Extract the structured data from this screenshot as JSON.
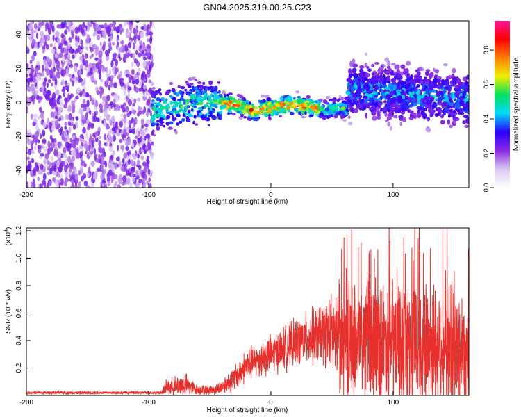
{
  "title": "GN04.2025.319.00.25.C23",
  "chart_data": [
    {
      "type": "heatmap",
      "name": "spectrogram",
      "xlabel": "Height of straight line (km)",
      "ylabel": "Frequency (Hz)",
      "xlim": [
        -200,
        162
      ],
      "ylim": [
        -50,
        48
      ],
      "xticks": [
        -200,
        -100,
        0,
        100
      ],
      "yticks": [
        -40,
        -20,
        0,
        20,
        40
      ],
      "colorbar": {
        "label": "Normalized spectral amplitude",
        "range": [
          0,
          0.97
        ],
        "ticks": [
          "0.0",
          "0.2",
          "0.4",
          "0.6",
          "0.8"
        ],
        "colors": [
          "#ffffff",
          "#d8c8f0",
          "#8a2be2",
          "#2a00ff",
          "#00d8ff",
          "#00e060",
          "#f0f000",
          "#ff8000",
          "#ff0000",
          "#ff1493"
        ]
      },
      "regions": [
        {
          "x": [
            -200,
            -97
          ],
          "description_level": "scattered noise",
          "amplitude": 0.08,
          "freq_range": [
            -50,
            48
          ]
        },
        {
          "x": [
            -97,
            63
          ],
          "amplitude": 0.5,
          "freq_center_track": [
            [
              -97,
              -5
            ],
            [
              -60,
              0
            ],
            [
              -30,
              -1
            ],
            [
              -15,
              -5
            ],
            [
              0,
              -3
            ],
            [
              20,
              -1
            ],
            [
              40,
              -4
            ],
            [
              63,
              -3
            ]
          ],
          "freq_spread": 6
        },
        {
          "x": [
            63,
            162
          ],
          "amplitude": 0.2,
          "freq_center_track": [
            [
              63,
              8
            ],
            [
              90,
              6
            ],
            [
              120,
              4
            ],
            [
              162,
              2
            ]
          ],
          "freq_spread": 14
        }
      ]
    },
    {
      "type": "line",
      "name": "snr",
      "xlabel": "Height of straight line (km)",
      "ylabel": "SNR (10 * v/v)",
      "multiplier_label": "(x10",
      "multiplier_exp": "4",
      "xlim": [
        -200,
        162
      ],
      "ylim": [
        0,
        1.22
      ],
      "xticks": [
        -200,
        -100,
        0,
        100
      ],
      "yticks": [
        0.2,
        0.4,
        0.6,
        0.8,
        1.0,
        1.2
      ],
      "color": "#e8302c",
      "envelope": [
        {
          "x": -200,
          "mean": 0.02,
          "spread": 0.01
        },
        {
          "x": -90,
          "mean": 0.02,
          "spread": 0.01
        },
        {
          "x": -85,
          "mean": 0.06,
          "spread": 0.05
        },
        {
          "x": -70,
          "mean": 0.08,
          "spread": 0.07
        },
        {
          "x": -60,
          "mean": 0.04,
          "spread": 0.03
        },
        {
          "x": -45,
          "mean": 0.04,
          "spread": 0.03
        },
        {
          "x": -30,
          "mean": 0.12,
          "spread": 0.08
        },
        {
          "x": -20,
          "mean": 0.22,
          "spread": 0.1
        },
        {
          "x": 0,
          "mean": 0.3,
          "spread": 0.12
        },
        {
          "x": 25,
          "mean": 0.4,
          "spread": 0.15
        },
        {
          "x": 45,
          "mean": 0.46,
          "spread": 0.2
        },
        {
          "x": 60,
          "mean": 0.4,
          "spread": 0.35
        },
        {
          "x": 100,
          "mean": 0.38,
          "spread": 0.4
        },
        {
          "x": 140,
          "mean": 0.36,
          "spread": 0.42
        },
        {
          "x": 162,
          "mean": 0.34,
          "spread": 0.38
        }
      ]
    }
  ]
}
